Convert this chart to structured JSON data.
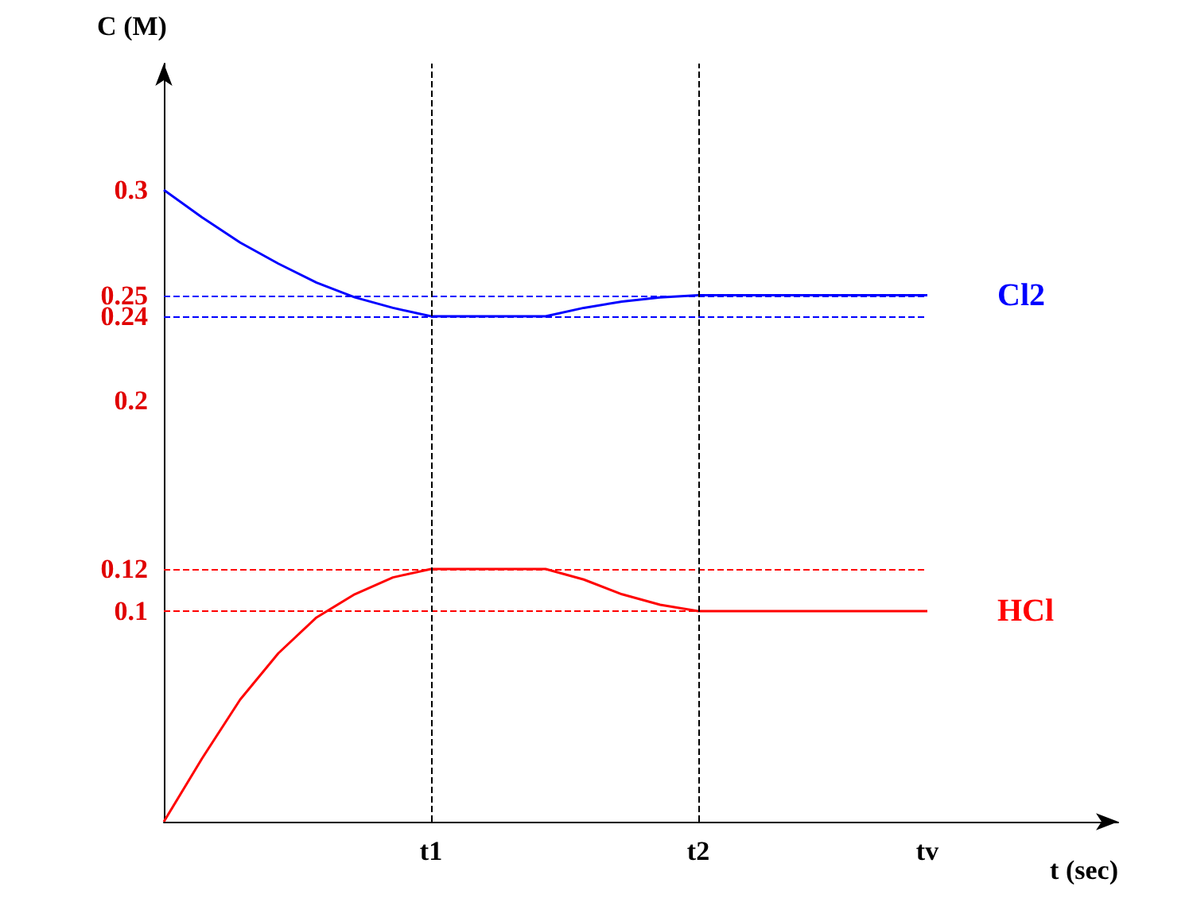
{
  "chart_data": {
    "type": "line",
    "xlabel": "t (sec)",
    "ylabel": "C (M)",
    "categories": [
      null,
      null,
      null,
      null,
      null,
      null,
      null,
      "t1",
      null,
      null,
      null,
      null,
      null,
      null,
      "t2",
      null,
      null,
      null,
      null,
      null,
      "tv",
      null,
      null,
      null,
      null,
      null
    ],
    "ylim": [
      0,
      0.36
    ],
    "yticks": [
      0.1,
      0.12,
      0.2,
      0.24,
      0.25,
      0.3
    ],
    "series": [
      {
        "name": "Cl2",
        "color": "#0000ff",
        "values": [
          0.3,
          0.287,
          0.275,
          0.265,
          0.256,
          0.249,
          0.244,
          0.24,
          0.24,
          0.24,
          0.24,
          0.244,
          0.247,
          0.249,
          0.25,
          0.25,
          0.25,
          0.25,
          0.25,
          0.25,
          0.25,
          null,
          null,
          null,
          null,
          null
        ]
      },
      {
        "name": "HCl",
        "color": "#ff0000",
        "values": [
          0,
          0.03,
          0.058,
          0.08,
          0.097,
          0.108,
          0.116,
          0.12,
          0.12,
          0.12,
          0.12,
          0.115,
          0.108,
          0.103,
          0.1,
          0.1,
          0.1,
          0.1,
          0.1,
          0.1,
          0.1,
          null,
          null,
          null,
          null,
          null
        ]
      }
    ],
    "ref_lines": [
      {
        "axis": "y",
        "value": 0.25,
        "color": "#0000ff",
        "line_style": "dashed"
      },
      {
        "axis": "y",
        "value": 0.24,
        "color": "#0000ff",
        "line_style": "dashed"
      },
      {
        "axis": "y",
        "value": 0.12,
        "color": "#ff0000",
        "line_style": "dashed"
      },
      {
        "axis": "y",
        "value": 0.1,
        "color": "#ff0000",
        "line_style": "dashed"
      },
      {
        "axis": "x",
        "value": "t1",
        "color": "#000000",
        "line_style": "dashed"
      },
      {
        "axis": "x",
        "value": "t2",
        "color": "#000000",
        "line_style": "dashed"
      }
    ],
    "grid": false,
    "legend": false,
    "marker": "none",
    "line_style": "solid"
  }
}
